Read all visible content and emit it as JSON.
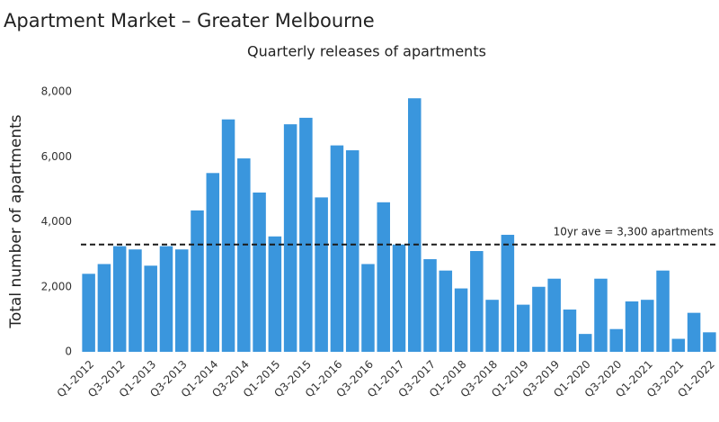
{
  "chart_data": {
    "type": "bar",
    "title": "Apartment Market – Greater Melbourne",
    "subtitle": "Quarterly releases of apartments",
    "y_label": "Total number of apartments",
    "categories": [
      "Q1-2012",
      null,
      "Q3-2012",
      null,
      "Q1-2013",
      null,
      "Q3-2013",
      null,
      "Q1-2014",
      null,
      "Q3-2014",
      null,
      "Q1-2015",
      null,
      "Q3-2015",
      null,
      "Q1-2016",
      null,
      "Q3-2016",
      null,
      "Q1-2017",
      null,
      "Q3-2017",
      null,
      "Q1-2018",
      null,
      "Q3-2018",
      null,
      "Q1-2019",
      null,
      "Q3-2019",
      null,
      "Q1-2020",
      null,
      "Q3-2020",
      null,
      "Q1-2021",
      null,
      "Q3-2021",
      null,
      "Q1-2022"
    ],
    "values": [
      2400,
      2700,
      3250,
      3150,
      2650,
      3250,
      3150,
      4350,
      5500,
      7150,
      5950,
      4900,
      3550,
      7000,
      7200,
      4750,
      6350,
      6200,
      2700,
      4600,
      3300,
      7800,
      2850,
      2500,
      1950,
      3100,
      1600,
      3600,
      1450,
      2000,
      2250,
      1300,
      550,
      2250,
      700,
      1550,
      1600,
      2500,
      400,
      1200,
      600
    ],
    "color": "#3a96dd",
    "ylim": [
      0,
      8000
    ],
    "yticks": [
      0,
      {
        "value": 2000,
        "label": "2,000"
      },
      {
        "value": 4000,
        "label": "4,000"
      },
      {
        "value": 6000,
        "label": "6,000"
      },
      {
        "value": 8000,
        "label": "8,000"
      }
    ],
    "grid": false,
    "reference_line": {
      "value": 3300,
      "label": "10yr ave = 3,300 apartments",
      "color": "#1a1a1a"
    }
  }
}
